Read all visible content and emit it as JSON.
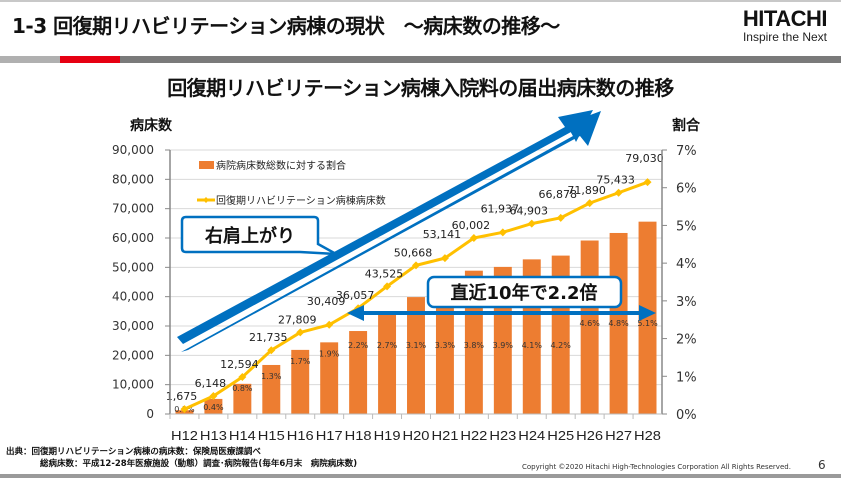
{
  "slide": {
    "title": "1-3 回復期リハビリテーション病棟の現状　～病床数の推移～",
    "logo_brand": "HITACHI",
    "logo_tagline": "Inspire the Next",
    "page_number": "6",
    "copyright": "Copyright ©2020 Hitachi High-Technologies Corporation All Rights Reserved.",
    "source_line1": "出典：回復期リハビリテーション病棟の病床数：保険局医療課調べ",
    "source_line2": "総病床数：平成12-28年医療施設（動態）調査･病院報告(毎年6月末　病院病床数)"
  },
  "callouts": {
    "rising": "右肩上がり",
    "growth": "直近10年で2.2倍"
  },
  "colors": {
    "bar": "#ed7d31",
    "line": "#ffc000",
    "arrow": "#0070c0",
    "accent_red": "#e60012"
  },
  "chart_data": {
    "type": "bar+line",
    "title": "回復期リハビリテーション病棟入院料の届出病床数の推移",
    "categories": [
      "H12",
      "H13",
      "H14",
      "H15",
      "H16",
      "H17",
      "H18",
      "H19",
      "H20",
      "H21",
      "H22",
      "H23",
      "H24",
      "H25",
      "H26",
      "H27",
      "H28"
    ],
    "y_left_label": "病床数",
    "y_right_label": "割合",
    "y_left_range": [
      0,
      90000
    ],
    "y_left_ticks": [
      "0",
      "10,000",
      "20,000",
      "30,000",
      "40,000",
      "50,000",
      "60,000",
      "70,000",
      "80,000",
      "90,000"
    ],
    "y_right_range": [
      0,
      7
    ],
    "y_right_ticks": [
      "0%",
      "1%",
      "2%",
      "3%",
      "4%",
      "5%",
      "6%",
      "7%"
    ],
    "legend_position": "top-left",
    "grid": true,
    "series": [
      {
        "name": "病院病床数総数に対する割合",
        "type": "bar",
        "axis": "right",
        "values": [
          0.1,
          0.4,
          0.8,
          1.3,
          1.7,
          1.9,
          2.2,
          2.7,
          3.1,
          3.3,
          3.8,
          3.9,
          4.1,
          4.2,
          4.6,
          4.8,
          5.1
        ],
        "labels": [
          "0.1%",
          "0.4%",
          "0.8%",
          "1.3%",
          "1.7%",
          "1.9%",
          "2.2%",
          "2.7%",
          "3.1%",
          "3.3%",
          "3.8%",
          "3.9%",
          "4.1%",
          "4.2%",
          "4.6%",
          "4.8%",
          "5.1%"
        ]
      },
      {
        "name": "回復期リハビリテーション病棟病床数",
        "type": "line",
        "axis": "left",
        "values": [
          1675,
          6148,
          12594,
          21735,
          27809,
          30409,
          36057,
          43525,
          50668,
          53141,
          60002,
          61937,
          64903,
          66878,
          71890,
          75433,
          79030
        ],
        "labels": [
          "1,675",
          "6,148",
          "12,594",
          "21,735",
          "27,809",
          "30,409",
          "36,057",
          "43,525",
          "50,668",
          "53,141",
          "60,002",
          "61,937",
          "64,903",
          "66,878",
          "71,890",
          "75,433",
          "79,030"
        ]
      }
    ]
  }
}
